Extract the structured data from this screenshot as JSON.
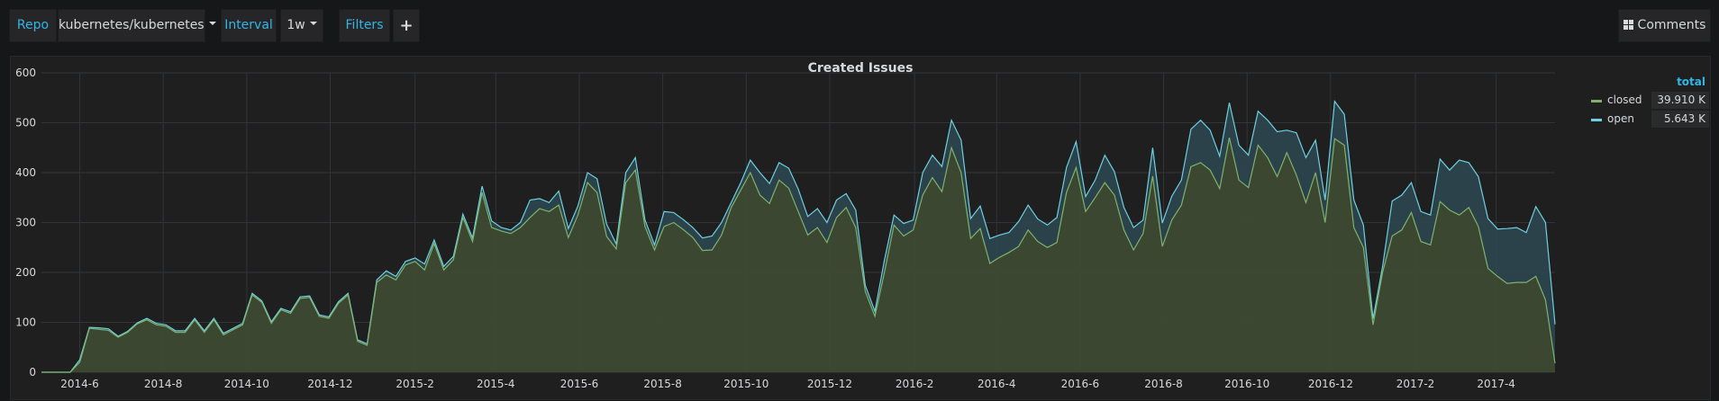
{
  "toolbar": {
    "repo_label": "Repo",
    "repo_value": "kubernetes/kubernetes",
    "interval_label": "Interval",
    "interval_value": "1w",
    "filters_label": "Filters",
    "add_symbol": "+",
    "comments_label": "Comments"
  },
  "panel": {
    "title": "Created Issues"
  },
  "legend": {
    "header": "total",
    "items": [
      {
        "name": "closed",
        "total": "39.910 K",
        "color": "#7eb26d"
      },
      {
        "name": "open",
        "total": "5.643 K",
        "color": "#6ed0e0"
      }
    ]
  },
  "colors": {
    "label_accent": "#33b5e5",
    "closed_line": "#7eb26d",
    "open_line": "#6ed0e0",
    "closed_fill": "#3d4a32",
    "open_fill": "#2d4650"
  },
  "chart_data": {
    "type": "area",
    "stacked": true,
    "title": "Created Issues",
    "x_start": "2014-5-4",
    "x_interval": "1w",
    "xlim": [
      "2014-5-4",
      "2017-5-14"
    ],
    "ylim": [
      0,
      600
    ],
    "yticks": [
      0,
      100,
      200,
      300,
      400,
      500,
      600
    ],
    "xticks": [
      {
        "label": "2014-6",
        "date": "2014-6-1"
      },
      {
        "label": "2014-8",
        "date": "2014-8-1"
      },
      {
        "label": "2014-10",
        "date": "2014-10-1"
      },
      {
        "label": "2014-12",
        "date": "2014-12-1"
      },
      {
        "label": "2015-2",
        "date": "2015-2-1"
      },
      {
        "label": "2015-4",
        "date": "2015-4-1"
      },
      {
        "label": "2015-6",
        "date": "2015-6-1"
      },
      {
        "label": "2015-8",
        "date": "2015-8-1"
      },
      {
        "label": "2015-10",
        "date": "2015-10-1"
      },
      {
        "label": "2015-12",
        "date": "2015-12-1"
      },
      {
        "label": "2016-2",
        "date": "2016-2-1"
      },
      {
        "label": "2016-4",
        "date": "2016-4-1"
      },
      {
        "label": "2016-6",
        "date": "2016-6-1"
      },
      {
        "label": "2016-8",
        "date": "2016-8-1"
      },
      {
        "label": "2016-10",
        "date": "2016-10-1"
      },
      {
        "label": "2016-12",
        "date": "2016-12-1"
      },
      {
        "label": "2017-2",
        "date": "2017-2-1"
      },
      {
        "label": "2017-4",
        "date": "2017-4-1"
      }
    ],
    "grid": true,
    "legend_position": "right",
    "series": [
      {
        "name": "closed",
        "values": [
          0,
          0,
          0,
          0,
          20,
          88,
          86,
          84,
          70,
          80,
          97,
          105,
          95,
          92,
          80,
          80,
          105,
          80,
          105,
          75,
          85,
          95,
          155,
          140,
          98,
          125,
          118,
          148,
          150,
          112,
          108,
          138,
          155,
          62,
          54,
          180,
          195,
          185,
          215,
          222,
          205,
          258,
          205,
          225,
          310,
          262,
          360,
          290,
          283,
          278,
          290,
          310,
          328,
          322,
          335,
          270,
          315,
          380,
          360,
          272,
          247,
          380,
          405,
          292,
          245,
          292,
          300,
          286,
          270,
          244,
          245,
          275,
          330,
          365,
          400,
          355,
          338,
          385,
          369,
          322,
          275,
          290,
          260,
          310,
          330,
          290,
          162,
          112,
          200,
          295,
          273,
          285,
          355,
          390,
          362,
          450,
          400,
          268,
          288,
          218,
          230,
          240,
          252,
          285,
          262,
          250,
          260,
          360,
          410,
          322,
          350,
          380,
          355,
          285,
          245,
          278,
          393,
          252,
          305,
          335,
          412,
          420,
          405,
          368,
          470,
          385,
          370,
          455,
          430,
          392,
          440,
          395,
          340,
          400,
          300,
          468,
          455,
          290,
          250,
          95,
          200,
          273,
          285,
          320,
          262,
          255,
          342,
          325,
          315,
          330,
          292,
          208,
          192,
          178,
          180,
          180,
          192,
          145,
          18
        ]
      },
      {
        "name": "open",
        "values": [
          0,
          0,
          0,
          0,
          5,
          2,
          3,
          3,
          2,
          2,
          2,
          3,
          3,
          3,
          3,
          3,
          3,
          3,
          3,
          3,
          3,
          3,
          3,
          3,
          3,
          3,
          3,
          3,
          3,
          3,
          3,
          3,
          3,
          3,
          3,
          5,
          8,
          7,
          7,
          7,
          12,
          7,
          7,
          7,
          7,
          7,
          13,
          13,
          7,
          7,
          10,
          35,
          20,
          18,
          28,
          18,
          18,
          20,
          28,
          25,
          10,
          20,
          25,
          13,
          10,
          30,
          20,
          20,
          20,
          25,
          28,
          25,
          10,
          15,
          25,
          45,
          40,
          35,
          40,
          45,
          37,
          38,
          40,
          35,
          28,
          35,
          12,
          10,
          25,
          20,
          25,
          20,
          45,
          45,
          50,
          55,
          65,
          40,
          45,
          50,
          45,
          40,
          50,
          50,
          45,
          45,
          50,
          50,
          52,
          30,
          35,
          55,
          47,
          45,
          45,
          27,
          57,
          47,
          48,
          50,
          75,
          85,
          80,
          65,
          70,
          70,
          65,
          68,
          75,
          90,
          45,
          85,
          90,
          65,
          45,
          75,
          62,
          55,
          45,
          12,
          12,
          70,
          70,
          60,
          60,
          60,
          85,
          80,
          110,
          90,
          100,
          100,
          95,
          110,
          110,
          100,
          140,
          155,
          78
        ]
      }
    ]
  }
}
